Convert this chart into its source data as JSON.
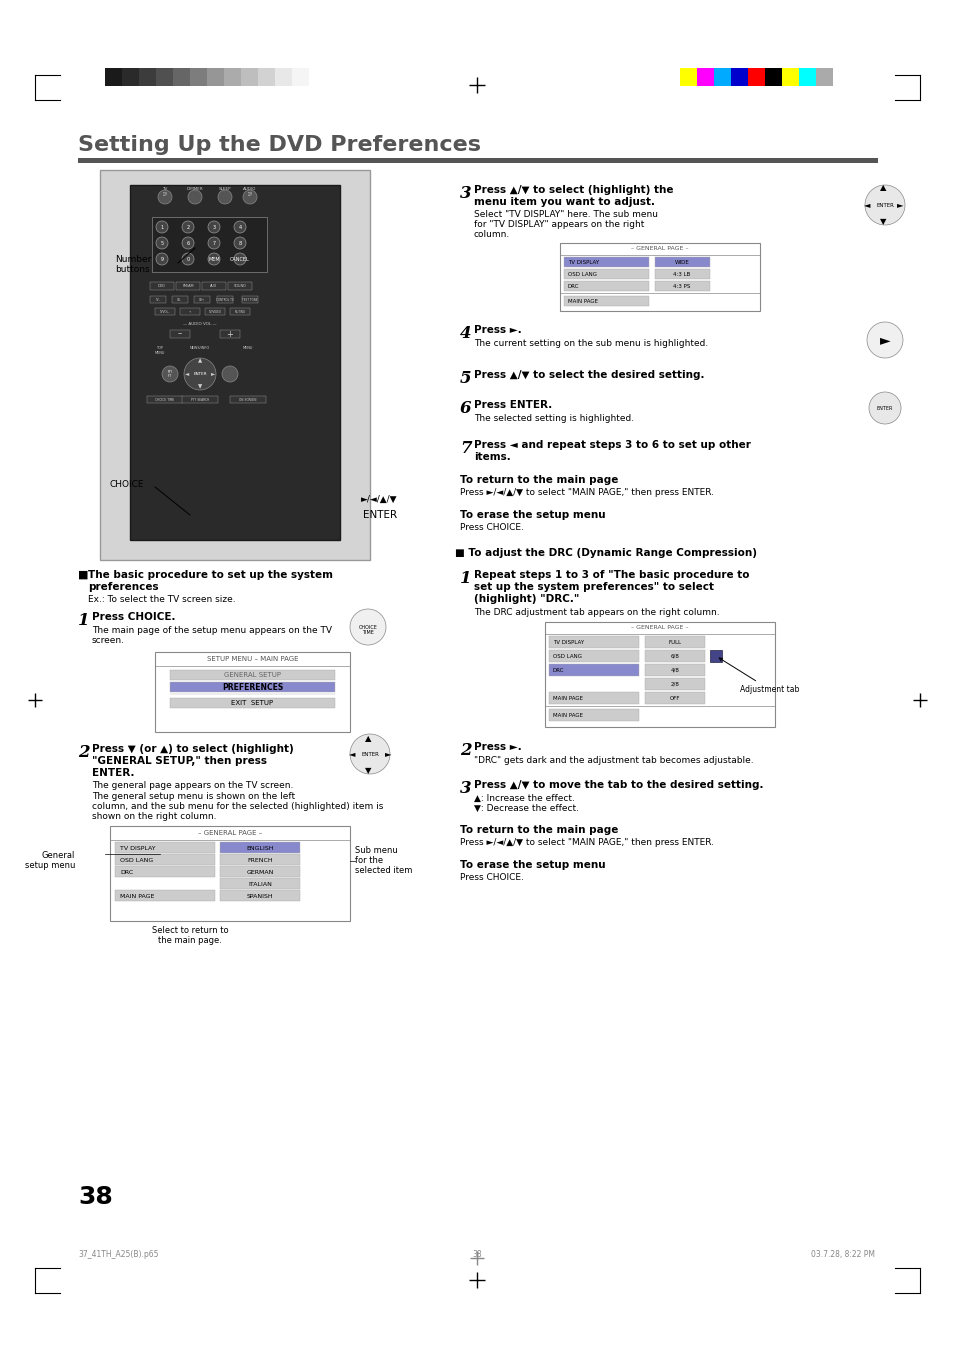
{
  "title": "Setting Up the DVD Preferences",
  "title_color": "#555555",
  "title_bar_color": "#555555",
  "background_color": "#ffffff",
  "page_number": "38",
  "footer_left": "37_41TH_A25(B).p65",
  "footer_center": "38",
  "footer_right": "03.7.28, 8:22 PM",
  "grayscale_colors": [
    "#1a1a1a",
    "#2a2a2a",
    "#3c3c3c",
    "#505050",
    "#666666",
    "#7d7d7d",
    "#969696",
    "#ababab",
    "#bebebe",
    "#d2d2d2",
    "#e8e8e8",
    "#f5f5f5"
  ],
  "color_bars": [
    "#ffff00",
    "#ff00ff",
    "#00aaff",
    "#0000cc",
    "#ff0000",
    "#000000",
    "#ffff00",
    "#00ffff",
    "#aaaaaa"
  ],
  "remote_bg": "#d4d4d4",
  "screen_bg": "#e8e8e8",
  "highlight_color": "#aaaacc",
  "section_head_color": "#333333"
}
